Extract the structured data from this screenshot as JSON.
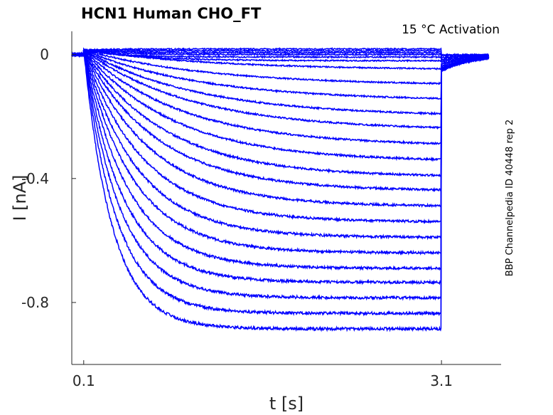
{
  "chart_data": {
    "type": "line",
    "title": "HCN1  Human  CHO_FT",
    "annotation": "15 °C  Activation",
    "side_label": "BBP Channelpedia ID 40448 rep 2",
    "xlabel": "t [s]",
    "ylabel": "I [nA]",
    "xlim": [
      0.0,
      3.6
    ],
    "ylim": [
      -1.0,
      0.075
    ],
    "xticks": [
      0.1,
      3.1
    ],
    "yticks": [
      0,
      -0.4,
      -0.8
    ],
    "xtick_labels": [
      "0.1",
      "3.1"
    ],
    "ytick_labels": [
      "0",
      "-0.4",
      "-0.8"
    ],
    "grid": false,
    "line_color": "#0000ff",
    "pulse_start": 0.1,
    "pulse_end": 3.1,
    "steady_state_currents": [
      0.018,
      0.012,
      0.006,
      0.0,
      -0.008,
      -0.02,
      -0.05,
      -0.1,
      -0.15,
      -0.2,
      -0.245,
      -0.295,
      -0.345,
      -0.395,
      -0.44,
      -0.49,
      -0.54,
      -0.59,
      -0.64,
      -0.69,
      -0.735,
      -0.785,
      -0.835,
      -0.885
    ],
    "time_constants": [
      0.3,
      0.3,
      0.3,
      0.3,
      0.3,
      0.5,
      1.1,
      1.05,
      1.0,
      0.95,
      0.9,
      0.82,
      0.75,
      0.68,
      0.62,
      0.56,
      0.5,
      0.45,
      0.41,
      0.37,
      0.33,
      0.3,
      0.27,
      0.24
    ],
    "tail_currents": [
      0.0,
      -0.005,
      -0.01,
      -0.015,
      -0.02,
      -0.025,
      -0.03,
      -0.035,
      -0.04,
      -0.045,
      -0.05,
      -0.05,
      -0.05,
      -0.05,
      -0.05,
      -0.05,
      -0.05,
      -0.05,
      -0.05,
      -0.05,
      -0.05,
      -0.05,
      -0.05,
      -0.05
    ]
  }
}
